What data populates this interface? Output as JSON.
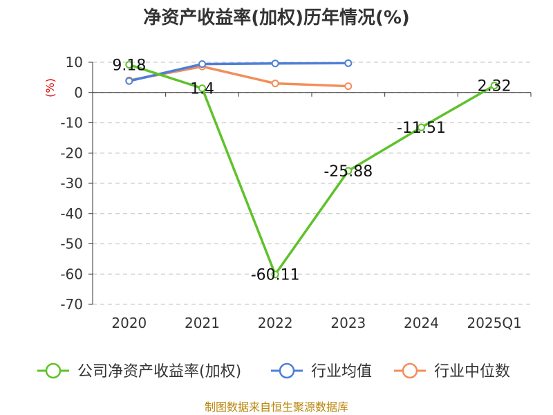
{
  "chart_data": {
    "type": "line",
    "title": "净资产收益率(加权)历年情况(%)",
    "ylabel": "(%)",
    "categories": [
      "2020",
      "2021",
      "2022",
      "2023",
      "2024",
      "2025Q1"
    ],
    "ylim": [
      -70,
      10
    ],
    "yticks": [
      10,
      0,
      -10,
      -20,
      -30,
      -40,
      -50,
      -60,
      -70
    ],
    "grid": true,
    "legend_position": "bottom",
    "series": [
      {
        "name": "公司净资产收益率(加权)",
        "color": "#5ec22a",
        "values": [
          9.18,
          1.4,
          -60.11,
          -25.88,
          -11.51,
          2.32
        ],
        "labels": [
          "9.18",
          "1.4",
          "-60.11",
          "-25.88",
          "-11.51",
          "2.32"
        ]
      },
      {
        "name": "行业均值",
        "color": "#4e7fd6",
        "values": [
          3.8,
          9.4,
          9.6,
          9.7,
          null,
          null
        ]
      },
      {
        "name": "行业中位数",
        "color": "#f28e5a",
        "values": [
          4.0,
          8.6,
          3.0,
          2.1,
          null,
          null
        ]
      }
    ]
  },
  "footer": {
    "source": "制图数据来自恒生聚源数据库"
  }
}
